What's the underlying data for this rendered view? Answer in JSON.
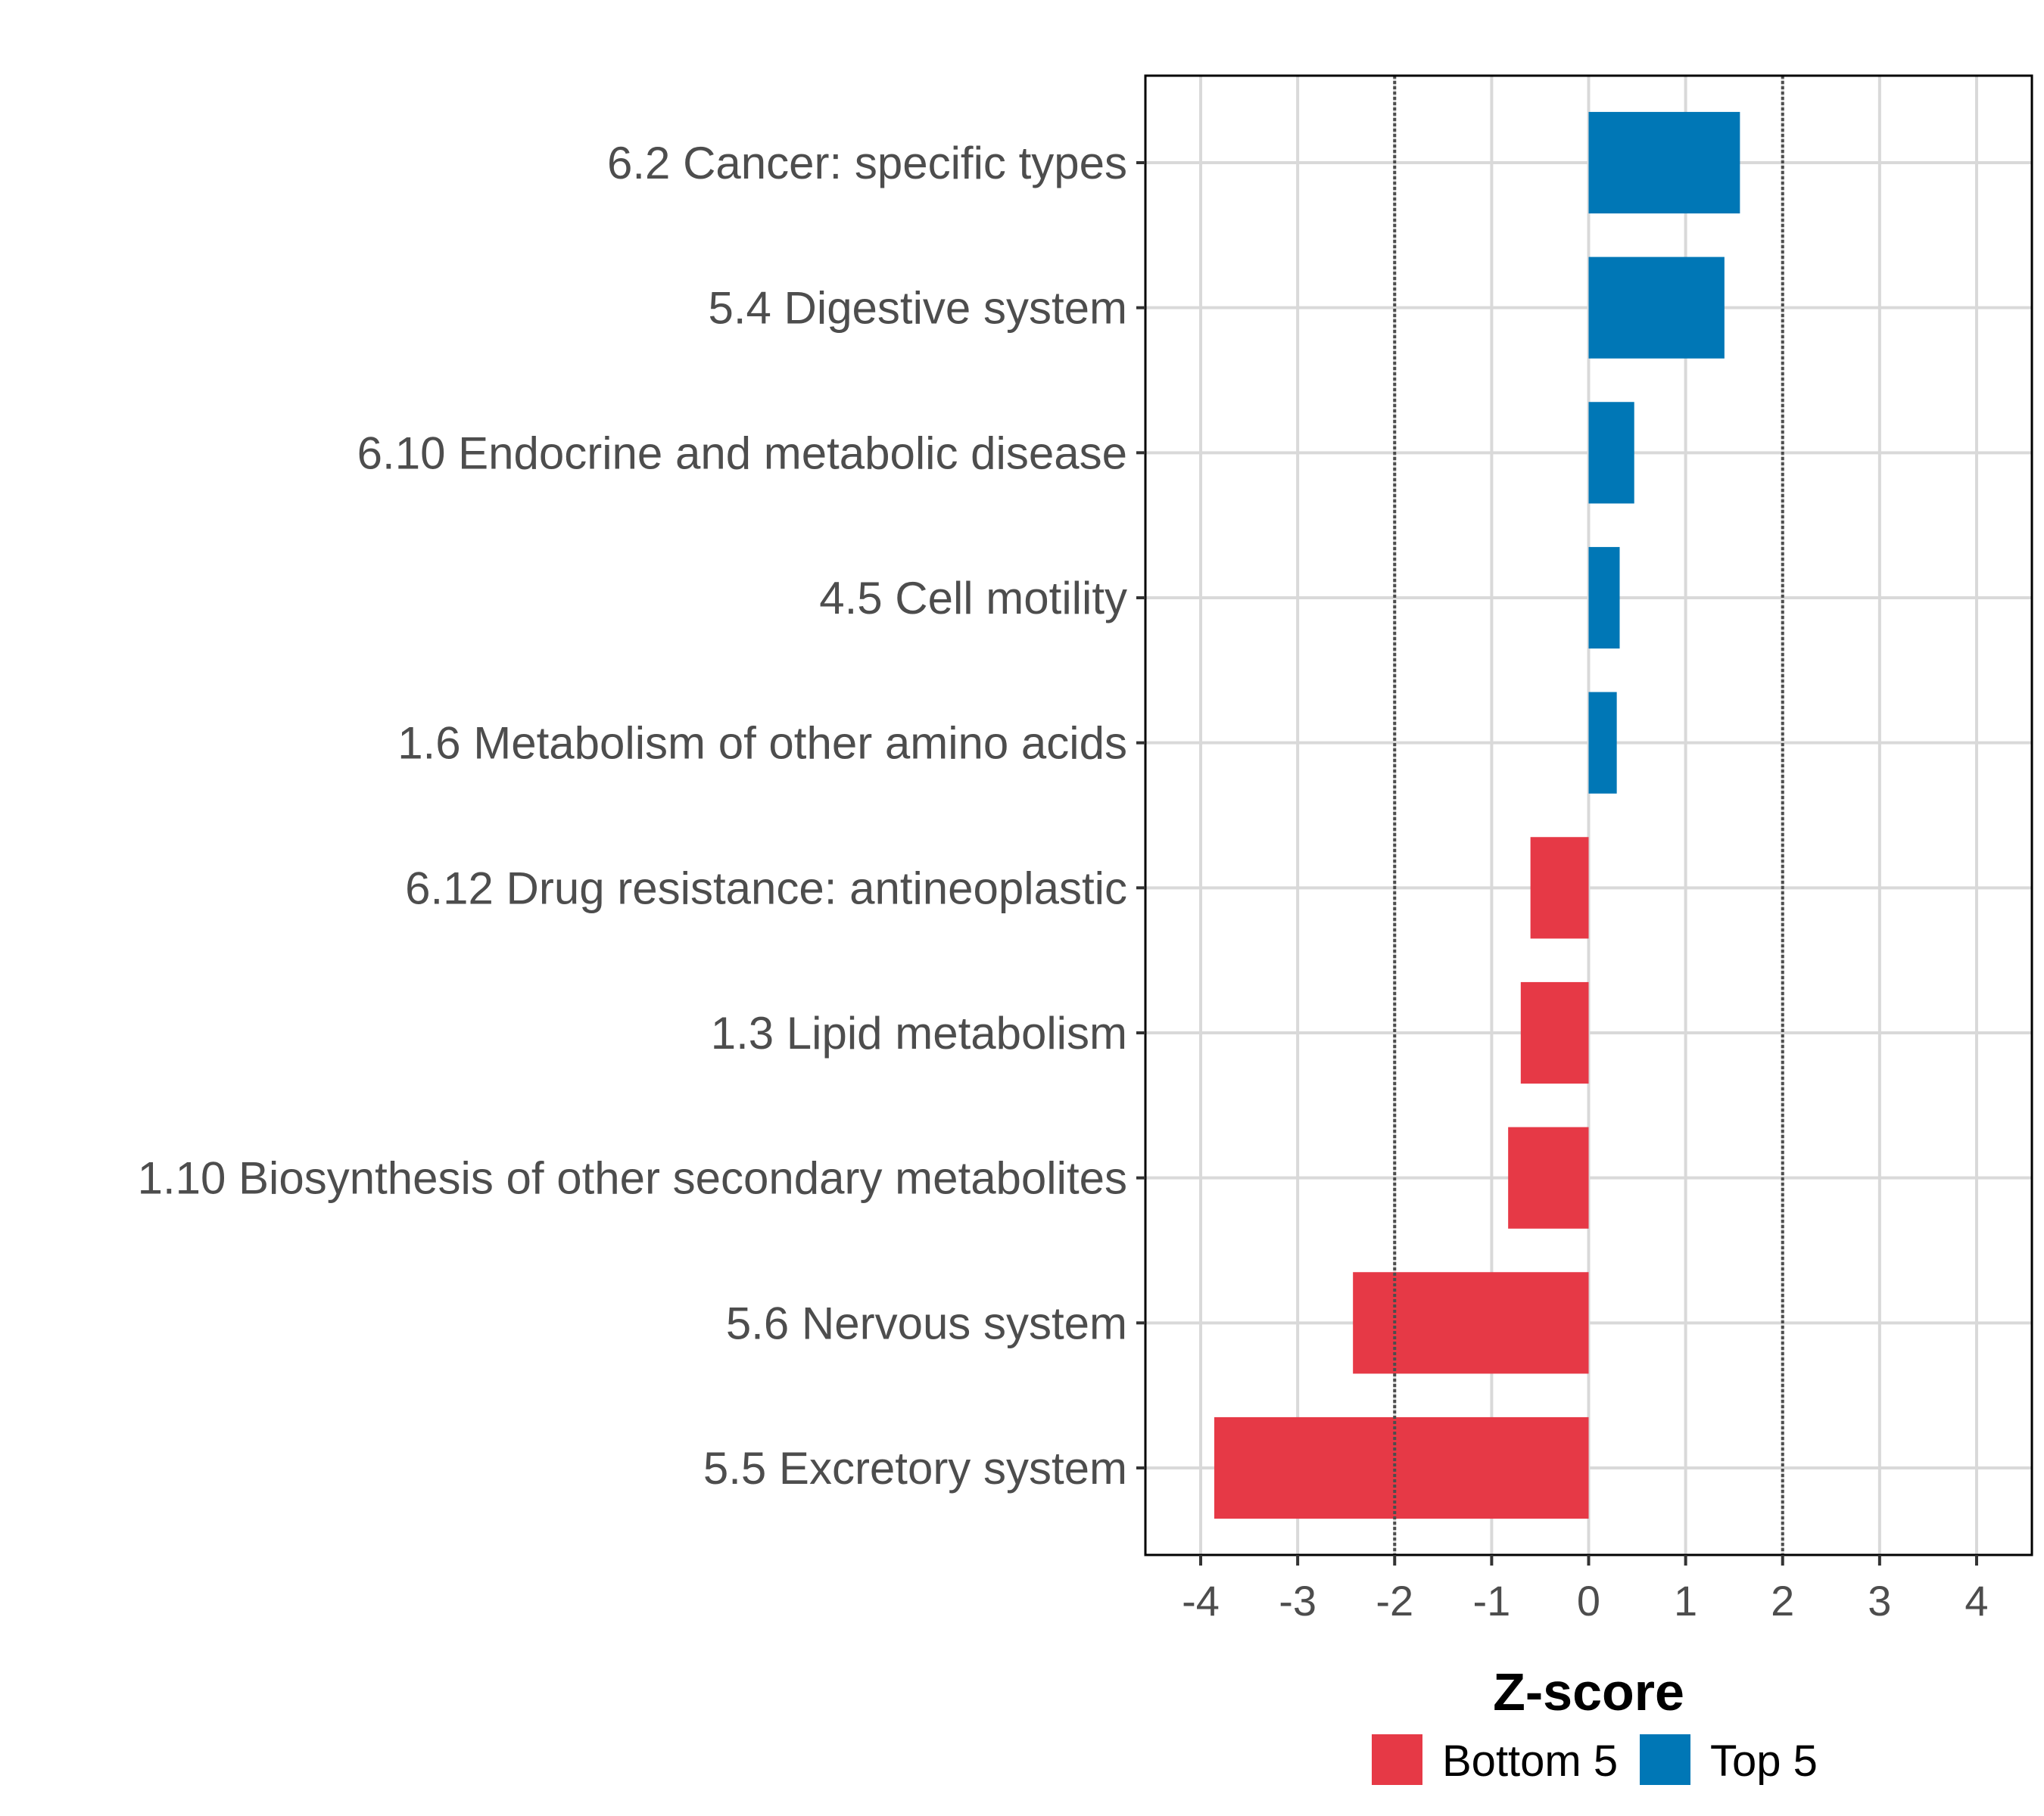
{
  "chart_data": {
    "type": "bar",
    "orientation": "horizontal",
    "title": "",
    "xlabel": "Z-score",
    "ylabel": "",
    "xlim": [
      -4.57,
      4.57
    ],
    "x_ticks": [
      -4,
      -3,
      -2,
      -1,
      0,
      1,
      2,
      3,
      4
    ],
    "x_tick_labels": [
      "-4",
      "-3",
      "-2",
      "-1",
      "0",
      "1",
      "2",
      "3",
      "4"
    ],
    "grid": true,
    "reference_lines": [
      {
        "x": -2,
        "style": "dotted",
        "color": "#4d4d4d"
      },
      {
        "x": 2,
        "style": "dotted",
        "color": "#4d4d4d"
      }
    ],
    "categories": [
      "6.2 Cancer: specific types",
      "5.4 Digestive system",
      "6.10 Endocrine and metabolic disease",
      "4.5 Cell motility",
      "1.6 Metabolism of other amino acids",
      "6.12 Drug resistance: antineoplastic",
      "1.3 Lipid metabolism",
      "1.10 Biosynthesis of other secondary metabolites",
      "5.6 Nervous system",
      "5.5 Excretory system"
    ],
    "values": [
      1.56,
      1.4,
      0.47,
      0.32,
      0.29,
      -0.6,
      -0.7,
      -0.83,
      -2.43,
      -3.86
    ],
    "groups": [
      "Top 5",
      "Top 5",
      "Top 5",
      "Top 5",
      "Top 5",
      "Bottom 5",
      "Bottom 5",
      "Bottom 5",
      "Bottom 5",
      "Bottom 5"
    ],
    "legend": {
      "position": "bottom",
      "entries": [
        {
          "label": "Bottom 5",
          "color": "#e63946"
        },
        {
          "label": "Top 5",
          "color": "#0077b6"
        }
      ]
    },
    "colors": {
      "Top 5": "#0077b6",
      "Bottom 5": "#e63946"
    }
  }
}
